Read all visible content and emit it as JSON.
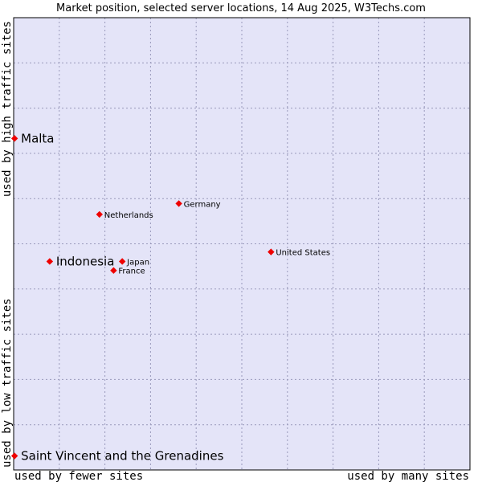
{
  "chart_data": {
    "type": "scatter",
    "title": "Market position, selected server locations, 14 Aug 2025, W3Techs.com",
    "xlabel_left": "used by fewer sites",
    "xlabel_right": "used by many sites",
    "ylabel_bottom": "used by low traffic sites",
    "ylabel_top": "used by high traffic sites",
    "xlim": [
      0,
      100
    ],
    "ylim": [
      0,
      100
    ],
    "grid": true,
    "colors": {
      "plot_background": "#e4e4f8",
      "grid": "#9999bb",
      "marker": "#ee0000",
      "frame": "#000000"
    },
    "points": [
      {
        "name": "Malta",
        "x": 0.2,
        "y": 73.3,
        "emphasis": true
      },
      {
        "name": "Indonesia",
        "x": 7.9,
        "y": 46.1,
        "emphasis": true
      },
      {
        "name": "Saint Vincent and the Grenadines",
        "x": 0.2,
        "y": 3.1,
        "emphasis": true
      },
      {
        "name": "Netherlands",
        "x": 18.8,
        "y": 56.5,
        "emphasis": false
      },
      {
        "name": "Germany",
        "x": 36.2,
        "y": 58.9,
        "emphasis": false
      },
      {
        "name": "Japan",
        "x": 23.8,
        "y": 46.1,
        "emphasis": false
      },
      {
        "name": "France",
        "x": 21.9,
        "y": 44.1,
        "emphasis": false
      },
      {
        "name": "United States",
        "x": 56.4,
        "y": 48.2,
        "emphasis": false
      }
    ]
  }
}
